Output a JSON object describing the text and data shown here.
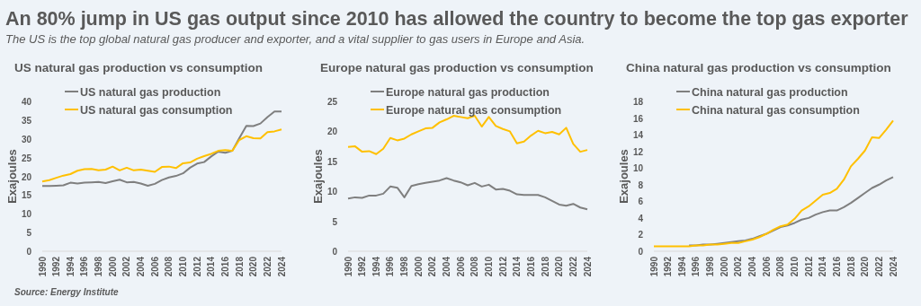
{
  "chart_data": [
    {
      "type": "line",
      "title": "US natural gas production vs consumption",
      "ylabel": "Exajoules",
      "annotations": [
        "An 80% jump in US gas output since 2010 has allowed the country to become the top gas exporter",
        "The US is the top global natural gas producer and exporter, and a vital supplier to gas users in Europe and Asia.",
        "Source:  Energy Institute"
      ],
      "x": [
        1990,
        1991,
        1992,
        1993,
        1994,
        1995,
        1996,
        1997,
        1998,
        1999,
        2000,
        2001,
        2002,
        2003,
        2004,
        2005,
        2006,
        2007,
        2008,
        2009,
        2010,
        2011,
        2012,
        2013,
        2014,
        2015,
        2016,
        2017,
        2018,
        2019,
        2020,
        2021,
        2022,
        2023,
        2024
      ],
      "xlim": [
        1990,
        2024
      ],
      "xticks": [
        1990,
        1992,
        1994,
        1996,
        1998,
        2000,
        2002,
        2004,
        2006,
        2008,
        2010,
        2012,
        2014,
        2016,
        2018,
        2020,
        2022,
        2024
      ],
      "ylim": [
        0,
        40
      ],
      "yticks": [
        0,
        5,
        10,
        15,
        20,
        25,
        30,
        35,
        40
      ],
      "grid": false,
      "legend": "top left",
      "series": [
        {
          "name": "US natural gas production",
          "color": "#7f7f7f",
          "values": [
            17.4,
            17.4,
            17.5,
            17.6,
            18.3,
            18.1,
            18.3,
            18.4,
            18.5,
            18.2,
            18.7,
            19.1,
            18.4,
            18.5,
            18.1,
            17.5,
            18.0,
            19.0,
            19.7,
            20.1,
            20.8,
            22.3,
            23.4,
            23.8,
            25.3,
            26.6,
            26.3,
            26.8,
            30.2,
            33.5,
            33.4,
            34.1,
            35.8,
            37.3,
            37.3
          ]
        },
        {
          "name": "US natural gas consumption",
          "color": "#ffc000",
          "values": [
            18.6,
            19.0,
            19.6,
            20.2,
            20.6,
            21.5,
            21.9,
            22.0,
            21.6,
            21.8,
            22.6,
            21.6,
            22.3,
            21.6,
            21.8,
            21.5,
            21.2,
            22.5,
            22.6,
            22.2,
            23.5,
            23.7,
            24.7,
            25.4,
            26.0,
            26.8,
            27.0,
            26.8,
            29.7,
            30.7,
            30.2,
            30.1,
            31.8,
            32.0,
            32.5
          ]
        }
      ]
    },
    {
      "type": "line",
      "title": "Europe natural gas production vs consumption",
      "ylabel": "Exajoules",
      "x": [
        1990,
        1991,
        1992,
        1993,
        1994,
        1995,
        1996,
        1997,
        1998,
        1999,
        2000,
        2001,
        2002,
        2003,
        2004,
        2005,
        2006,
        2007,
        2008,
        2009,
        2010,
        2011,
        2012,
        2013,
        2014,
        2015,
        2016,
        2017,
        2018,
        2019,
        2020,
        2021,
        2022,
        2023,
        2024
      ],
      "xlim": [
        1990,
        2024
      ],
      "xticks": [
        1990,
        1992,
        1994,
        1996,
        1998,
        2000,
        2002,
        2004,
        2006,
        2008,
        2010,
        2012,
        2014,
        2016,
        2018,
        2020,
        2022,
        2024
      ],
      "ylim": [
        0,
        25
      ],
      "yticks": [
        0,
        5,
        10,
        15,
        20,
        25
      ],
      "grid": false,
      "legend": "top left",
      "series": [
        {
          "name": "Europe natural gas production",
          "color": "#7f7f7f",
          "values": [
            8.8,
            9.0,
            8.9,
            9.3,
            9.3,
            9.6,
            10.8,
            10.6,
            9.0,
            10.9,
            11.2,
            11.4,
            11.6,
            11.8,
            12.2,
            11.8,
            11.5,
            11.0,
            11.4,
            10.8,
            11.1,
            10.3,
            10.4,
            10.1,
            9.5,
            9.4,
            9.4,
            9.4,
            9.0,
            8.4,
            7.8,
            7.6,
            7.9,
            7.3,
            7.0
          ]
        },
        {
          "name": "Europe natural gas consumption",
          "color": "#ffc000",
          "values": [
            17.4,
            17.5,
            16.6,
            16.7,
            16.2,
            17.1,
            18.9,
            18.5,
            18.8,
            19.5,
            20.0,
            20.5,
            20.6,
            21.5,
            22.0,
            22.6,
            22.4,
            22.2,
            22.6,
            20.8,
            22.4,
            20.9,
            20.4,
            20.0,
            18.0,
            18.3,
            19.3,
            20.1,
            19.7,
            19.9,
            19.5,
            20.6,
            17.9,
            16.6,
            16.9
          ]
        }
      ]
    },
    {
      "type": "line",
      "title": "China natural gas production vs consumption",
      "ylabel": "Exajoules",
      "x": [
        1990,
        1991,
        1992,
        1993,
        1994,
        1995,
        1996,
        1997,
        1998,
        1999,
        2000,
        2001,
        2002,
        2003,
        2004,
        2005,
        2006,
        2007,
        2008,
        2009,
        2010,
        2011,
        2012,
        2013,
        2014,
        2015,
        2016,
        2017,
        2018,
        2019,
        2020,
        2021,
        2022,
        2023,
        2024
      ],
      "xlim": [
        1990,
        2024
      ],
      "xticks": [
        1990,
        1992,
        1994,
        1996,
        1998,
        2000,
        2002,
        2004,
        2006,
        2008,
        2010,
        2012,
        2014,
        2016,
        2018,
        2020,
        2022,
        2024
      ],
      "ylim": [
        0,
        18
      ],
      "yticks": [
        0,
        2,
        4,
        6,
        8,
        10,
        12,
        14,
        16,
        18
      ],
      "grid": false,
      "legend": "top left",
      "series": [
        {
          "name": "China natural gas production",
          "color": "#7f7f7f",
          "values": [
            null,
            null,
            null,
            null,
            null,
            0.7,
            0.7,
            0.8,
            0.8,
            0.9,
            1.0,
            1.1,
            1.2,
            1.3,
            1.5,
            1.8,
            2.1,
            2.5,
            2.9,
            3.1,
            3.4,
            3.8,
            4.0,
            4.4,
            4.7,
            4.9,
            4.9,
            5.3,
            5.8,
            6.4,
            7.0,
            7.6,
            8.0,
            8.5,
            8.9
          ]
        },
        {
          "name": "China natural gas consumption",
          "color": "#ffc000",
          "values": [
            0.6,
            0.6,
            0.6,
            0.6,
            0.6,
            0.6,
            0.7,
            0.7,
            0.8,
            0.8,
            0.9,
            1.0,
            1.0,
            1.2,
            1.4,
            1.7,
            2.1,
            2.6,
            3.0,
            3.2,
            3.9,
            4.9,
            5.4,
            6.1,
            6.8,
            7.0,
            7.5,
            8.6,
            10.2,
            11.1,
            12.1,
            13.7,
            13.6,
            14.6,
            15.7
          ]
        }
      ]
    }
  ]
}
